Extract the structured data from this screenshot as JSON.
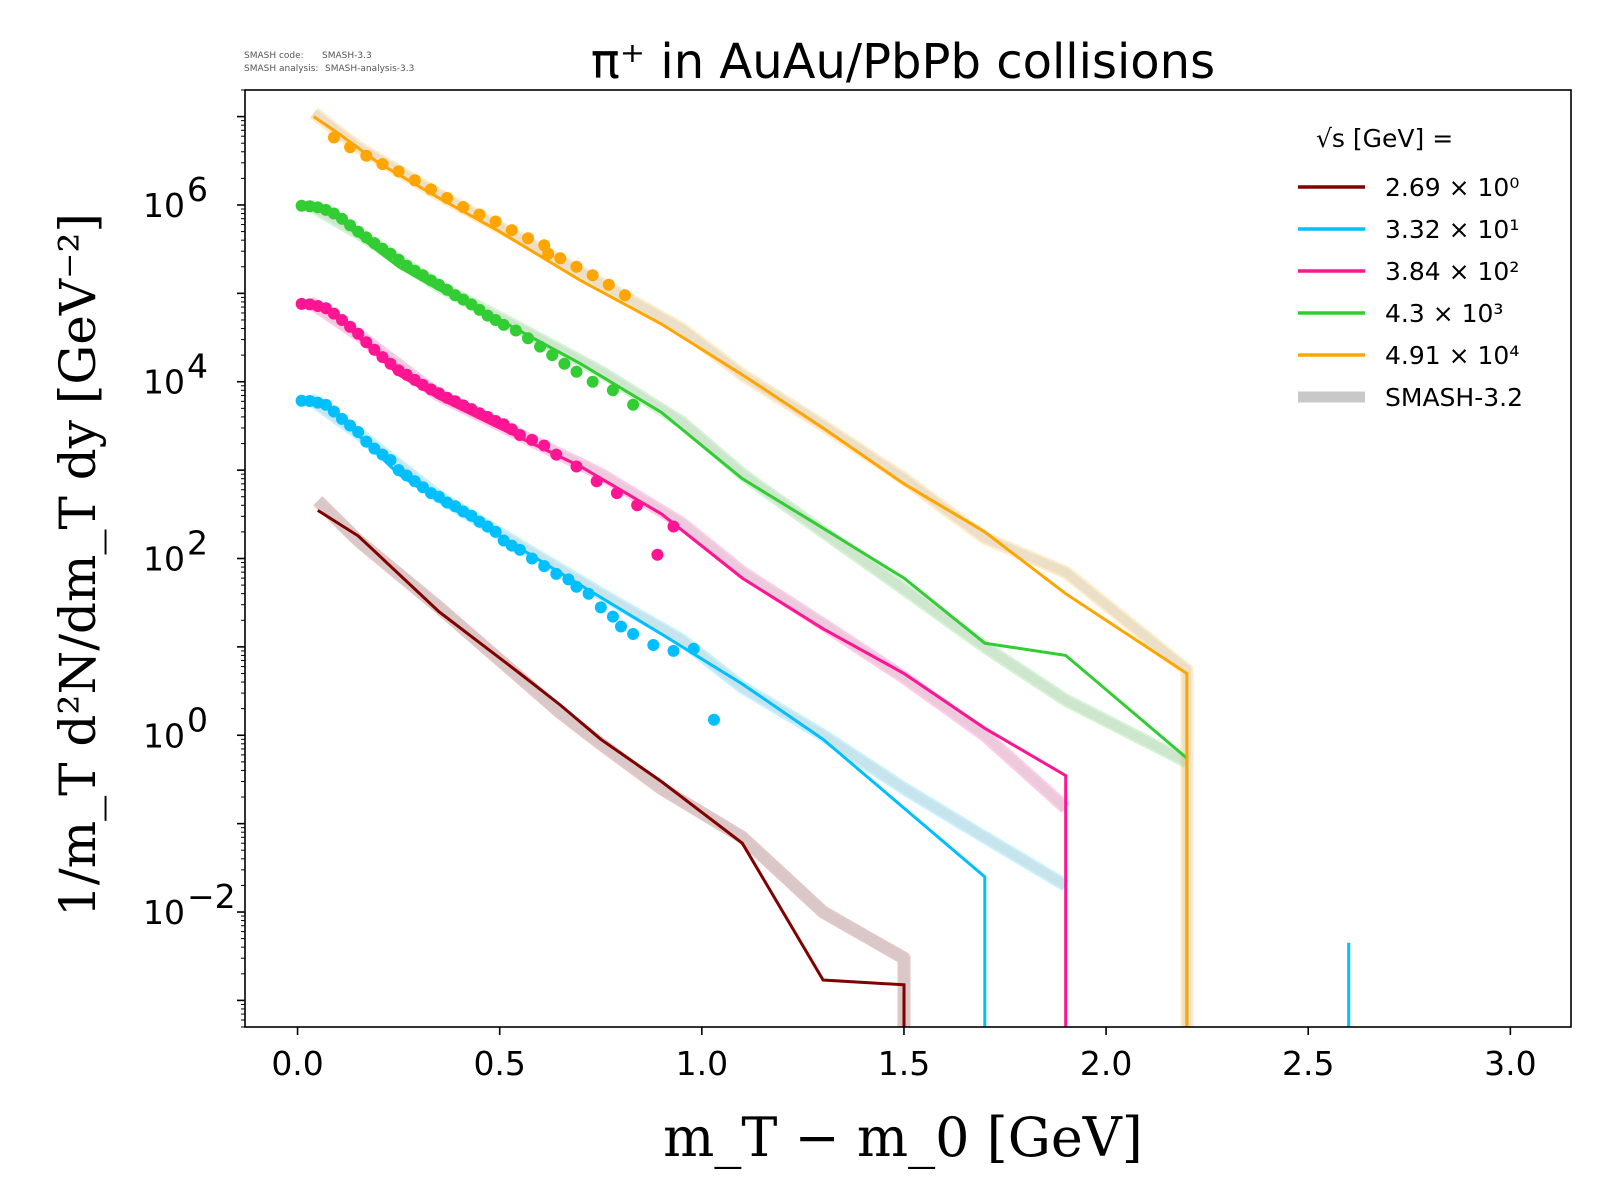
{
  "meta": {
    "code_label": "SMASH code:",
    "code_value": "SMASH-3.3",
    "analysis_label": "SMASH analysis:",
    "analysis_value": "SMASH-analysis-3.3"
  },
  "chart_data": {
    "type": "line",
    "title": "π⁺ in AuAu/PbPb collisions",
    "xlabel": "m_T − m_0 [GeV]",
    "ylabel": "1/m_T d²N/dm_T dy [GeV⁻²]",
    "yscale": "log",
    "xlim": [
      -0.13,
      3.15
    ],
    "ylim": [
      0.0005,
      20000000
    ],
    "x_ticks": [
      0.0,
      0.5,
      1.0,
      1.5,
      2.0,
      2.5,
      3.0
    ],
    "x_tick_labels": [
      "0.0",
      "0.5",
      "1.0",
      "1.5",
      "2.0",
      "2.5",
      "3.0"
    ],
    "y_ticks": [
      {
        "value": 0.01,
        "base": "10",
        "exp": "−2"
      },
      {
        "value": 1,
        "base": "10",
        "exp": "0"
      },
      {
        "value": 100,
        "base": "10",
        "exp": "2"
      },
      {
        "value": 10000,
        "base": "10",
        "exp": "4"
      },
      {
        "value": 1000000,
        "base": "10",
        "exp": "6"
      }
    ],
    "legend_title": "√s [GeV] =",
    "legend_position": "top-right",
    "series": [
      {
        "name": "2.69 × 10⁰",
        "label_mantissa": "2.69",
        "label_exp": "0",
        "color": "#800000",
        "line": [
          [
            0.05,
            350
          ],
          [
            0.15,
            180
          ],
          [
            0.35,
            25
          ],
          [
            0.55,
            5
          ],
          [
            0.65,
            2.2
          ],
          [
            0.75,
            0.9
          ],
          [
            0.9,
            0.3
          ],
          [
            1.1,
            0.06
          ],
          [
            1.3,
            0.0017
          ],
          [
            1.5,
            0.0015
          ],
          [
            1.5,
            0.0001
          ]
        ],
        "reference": [
          [
            0.05,
            450
          ],
          [
            0.15,
            160
          ],
          [
            0.35,
            28
          ],
          [
            0.55,
            4.5
          ],
          [
            0.65,
            1.8
          ],
          [
            0.75,
            0.8
          ],
          [
            0.9,
            0.25
          ],
          [
            1.1,
            0.07
          ],
          [
            1.3,
            0.01
          ],
          [
            1.5,
            0.003
          ],
          [
            1.5,
            0.0001
          ]
        ],
        "points": []
      },
      {
        "name": "3.32 × 10¹",
        "label_mantissa": "3.32",
        "label_exp": "1",
        "color": "#00bfff",
        "line": [
          [
            0.03,
            6000
          ],
          [
            0.08,
            5000
          ],
          [
            0.15,
            2500
          ],
          [
            0.25,
            900
          ],
          [
            0.35,
            450
          ],
          [
            0.5,
            180
          ],
          [
            0.7,
            50
          ],
          [
            0.9,
            14
          ],
          [
            1.1,
            3.8
          ],
          [
            1.3,
            0.9
          ],
          [
            1.5,
            0.15
          ],
          [
            1.7,
            0.025
          ],
          [
            1.7,
            0.0001
          ]
        ],
        "reference": [
          [
            0.03,
            6500
          ],
          [
            0.15,
            2600
          ],
          [
            0.35,
            500
          ],
          [
            0.55,
            140
          ],
          [
            0.75,
            40
          ],
          [
            0.95,
            12
          ],
          [
            1.1,
            3.5
          ],
          [
            1.3,
            1.0
          ],
          [
            1.5,
            0.25
          ],
          [
            1.7,
            0.07
          ],
          [
            1.9,
            0.02
          ]
        ],
        "spike": [
          [
            2.6,
            0.0001
          ],
          [
            2.6,
            0.0045
          ]
        ],
        "points": [
          [
            0.01,
            6100
          ],
          [
            0.03,
            6050
          ],
          [
            0.05,
            5800
          ],
          [
            0.07,
            5500
          ],
          [
            0.09,
            4600
          ],
          [
            0.11,
            3800
          ],
          [
            0.13,
            3200
          ],
          [
            0.15,
            2700
          ],
          [
            0.17,
            2100
          ],
          [
            0.19,
            1750
          ],
          [
            0.21,
            1500
          ],
          [
            0.23,
            1300
          ],
          [
            0.25,
            1000
          ],
          [
            0.27,
            870
          ],
          [
            0.29,
            750
          ],
          [
            0.31,
            640
          ],
          [
            0.33,
            550
          ],
          [
            0.35,
            500
          ],
          [
            0.37,
            430
          ],
          [
            0.39,
            390
          ],
          [
            0.41,
            340
          ],
          [
            0.43,
            305
          ],
          [
            0.45,
            260
          ],
          [
            0.47,
            230
          ],
          [
            0.49,
            200
          ],
          [
            0.51,
            160
          ],
          [
            0.53,
            140
          ],
          [
            0.55,
            125
          ],
          [
            0.58,
            100
          ],
          [
            0.61,
            82
          ],
          [
            0.64,
            67
          ],
          [
            0.67,
            58
          ],
          [
            0.69,
            48
          ],
          [
            0.72,
            40
          ],
          [
            0.75,
            28
          ],
          [
            0.78,
            22
          ],
          [
            0.8,
            17
          ],
          [
            0.83,
            14
          ],
          [
            0.88,
            10.5
          ],
          [
            0.93,
            9
          ],
          [
            0.98,
            9.5
          ],
          [
            1.03,
            1.5
          ]
        ]
      },
      {
        "name": "3.84 × 10²",
        "label_mantissa": "3.84",
        "label_exp": "2",
        "color": "#ff1493",
        "line": [
          [
            0.03,
            75000
          ],
          [
            0.08,
            65000
          ],
          [
            0.15,
            32000
          ],
          [
            0.25,
            12000
          ],
          [
            0.35,
            6500
          ],
          [
            0.5,
            3000
          ],
          [
            0.7,
            1100
          ],
          [
            0.9,
            320
          ],
          [
            1.1,
            60
          ],
          [
            1.3,
            16
          ],
          [
            1.5,
            5
          ],
          [
            1.7,
            1.2
          ],
          [
            1.9,
            0.35
          ],
          [
            1.9,
            0.0001
          ]
        ],
        "reference": [
          [
            0.03,
            80000
          ],
          [
            0.15,
            34000
          ],
          [
            0.35,
            7000
          ],
          [
            0.55,
            2500
          ],
          [
            0.75,
            900
          ],
          [
            0.95,
            250
          ],
          [
            1.1,
            70
          ],
          [
            1.3,
            18
          ],
          [
            1.5,
            4.5
          ],
          [
            1.7,
            1.0
          ],
          [
            1.9,
            0.15
          ]
        ],
        "points": [
          [
            0.01,
            76000
          ],
          [
            0.03,
            75000
          ],
          [
            0.05,
            72000
          ],
          [
            0.07,
            68000
          ],
          [
            0.09,
            59000
          ],
          [
            0.11,
            50000
          ],
          [
            0.13,
            42000
          ],
          [
            0.15,
            35000
          ],
          [
            0.17,
            28000
          ],
          [
            0.19,
            23000
          ],
          [
            0.21,
            19000
          ],
          [
            0.23,
            16000
          ],
          [
            0.25,
            13500
          ],
          [
            0.27,
            12000
          ],
          [
            0.29,
            10500
          ],
          [
            0.31,
            9200
          ],
          [
            0.33,
            8200
          ],
          [
            0.35,
            7400
          ],
          [
            0.37,
            6600
          ],
          [
            0.39,
            6000
          ],
          [
            0.41,
            5400
          ],
          [
            0.43,
            4900
          ],
          [
            0.45,
            4400
          ],
          [
            0.47,
            4000
          ],
          [
            0.49,
            3600
          ],
          [
            0.51,
            3300
          ],
          [
            0.53,
            2900
          ],
          [
            0.55,
            2500
          ],
          [
            0.58,
            2200
          ],
          [
            0.61,
            1900
          ],
          [
            0.64,
            1500
          ],
          [
            0.69,
            1100
          ],
          [
            0.74,
            750
          ],
          [
            0.79,
            550
          ],
          [
            0.84,
            400
          ],
          [
            0.89,
            110
          ],
          [
            0.93,
            230
          ]
        ]
      },
      {
        "name": "4.3 × 10³",
        "label_mantissa": "4.3",
        "label_exp": "3",
        "color": "#32cd32",
        "line": [
          [
            0.03,
            950000
          ],
          [
            0.08,
            850000
          ],
          [
            0.15,
            450000
          ],
          [
            0.25,
            200000
          ],
          [
            0.35,
            110000
          ],
          [
            0.5,
            50000
          ],
          [
            0.7,
            16000
          ],
          [
            0.9,
            4500
          ],
          [
            1.1,
            800
          ],
          [
            1.3,
            220
          ],
          [
            1.5,
            60
          ],
          [
            1.7,
            11
          ],
          [
            1.9,
            8
          ],
          [
            2.2,
            0.55
          ],
          [
            2.2,
            0.0001
          ]
        ],
        "reference": [
          [
            0.03,
            1000000
          ],
          [
            0.15,
            480000
          ],
          [
            0.35,
            120000
          ],
          [
            0.55,
            40000
          ],
          [
            0.75,
            13000
          ],
          [
            0.95,
            3500
          ],
          [
            1.1,
            900
          ],
          [
            1.3,
            200
          ],
          [
            1.5,
            45
          ],
          [
            1.7,
            10
          ],
          [
            1.9,
            2.5
          ],
          [
            2.2,
            0.5
          ]
        ],
        "points": [
          [
            0.01,
            980000
          ],
          [
            0.03,
            970000
          ],
          [
            0.05,
            940000
          ],
          [
            0.07,
            880000
          ],
          [
            0.09,
            800000
          ],
          [
            0.11,
            700000
          ],
          [
            0.13,
            590000
          ],
          [
            0.15,
            500000
          ],
          [
            0.17,
            430000
          ],
          [
            0.19,
            370000
          ],
          [
            0.21,
            320000
          ],
          [
            0.23,
            280000
          ],
          [
            0.25,
            240000
          ],
          [
            0.27,
            205000
          ],
          [
            0.29,
            180000
          ],
          [
            0.31,
            160000
          ],
          [
            0.33,
            140000
          ],
          [
            0.35,
            125000
          ],
          [
            0.37,
            110000
          ],
          [
            0.39,
            95000
          ],
          [
            0.41,
            85000
          ],
          [
            0.43,
            75000
          ],
          [
            0.45,
            65000
          ],
          [
            0.47,
            56000
          ],
          [
            0.49,
            50000
          ],
          [
            0.51,
            44000
          ],
          [
            0.54,
            38000
          ],
          [
            0.57,
            31000
          ],
          [
            0.6,
            25000
          ],
          [
            0.63,
            20000
          ],
          [
            0.66,
            16000
          ],
          [
            0.69,
            13000
          ],
          [
            0.73,
            10000
          ],
          [
            0.78,
            8000
          ],
          [
            0.83,
            5500
          ]
        ]
      },
      {
        "name": "4.91 × 10⁴",
        "label_mantissa": "4.91",
        "label_exp": "4",
        "color": "#ffa500",
        "line": [
          [
            0.04,
            10000000
          ],
          [
            0.1,
            6500000
          ],
          [
            0.2,
            3000000
          ],
          [
            0.35,
            1200000
          ],
          [
            0.5,
            500000
          ],
          [
            0.7,
            140000
          ],
          [
            0.9,
            45000
          ],
          [
            1.1,
            12000
          ],
          [
            1.3,
            3000
          ],
          [
            1.5,
            700
          ],
          [
            1.7,
            200
          ],
          [
            1.9,
            40
          ],
          [
            2.2,
            5
          ],
          [
            2.2,
            0.0001
          ]
        ],
        "reference": [
          [
            0.04,
            11000000
          ],
          [
            0.15,
            4500000
          ],
          [
            0.35,
            1300000
          ],
          [
            0.55,
            420000
          ],
          [
            0.75,
            130000
          ],
          [
            0.95,
            40000
          ],
          [
            1.1,
            12000
          ],
          [
            1.3,
            3200
          ],
          [
            1.5,
            800
          ],
          [
            1.7,
            170
          ],
          [
            1.9,
            70
          ],
          [
            2.2,
            5.5
          ],
          [
            2.2,
            0.0001
          ]
        ],
        "points": [
          [
            0.09,
            5800000
          ],
          [
            0.13,
            4500000
          ],
          [
            0.17,
            3600000
          ],
          [
            0.21,
            2900000
          ],
          [
            0.25,
            2400000
          ],
          [
            0.29,
            1900000
          ],
          [
            0.33,
            1500000
          ],
          [
            0.37,
            1200000
          ],
          [
            0.41,
            950000
          ],
          [
            0.45,
            780000
          ],
          [
            0.49,
            650000
          ],
          [
            0.53,
            520000
          ],
          [
            0.57,
            420000
          ],
          [
            0.61,
            350000
          ],
          [
            0.62,
            280000
          ],
          [
            0.65,
            250000
          ],
          [
            0.69,
            200000
          ],
          [
            0.73,
            160000
          ],
          [
            0.77,
            125000
          ],
          [
            0.81,
            95000
          ]
        ]
      }
    ],
    "reference_label": "SMASH-3.2",
    "reference_color": "#c8c8c8"
  }
}
